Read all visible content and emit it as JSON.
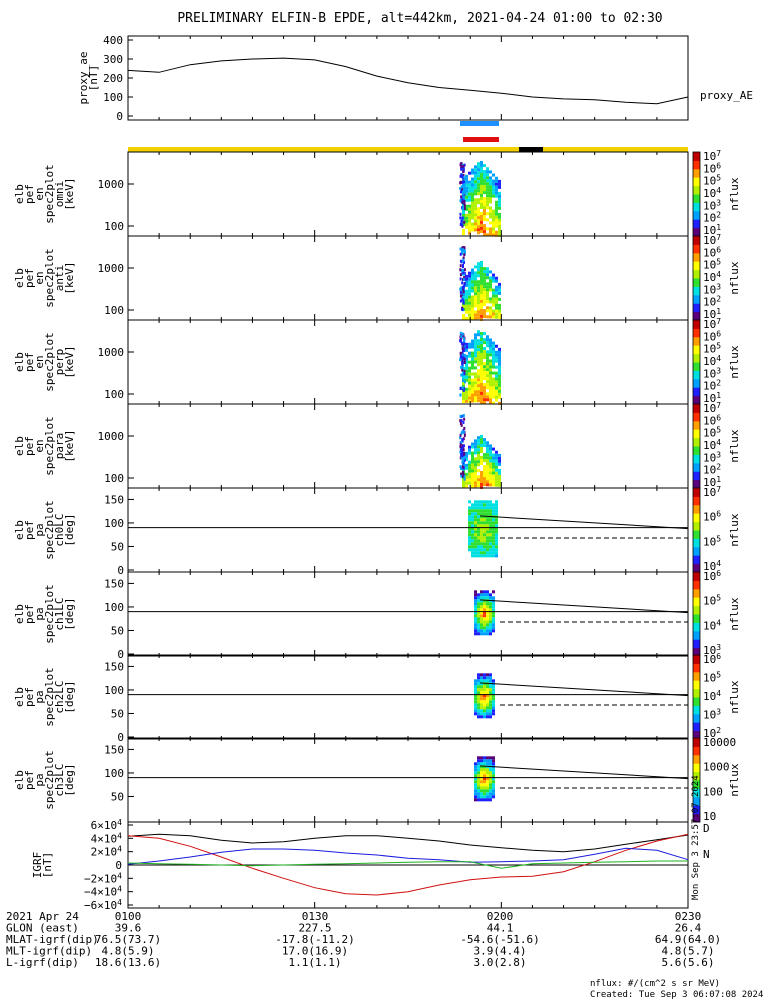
{
  "header": {
    "title": "PRELIMINARY ELFIN-B EPDE, alt=442km, 2021-04-24 01:00 to 02:30"
  },
  "side_stamp": "Mon Sep  3 23:57:07 2024",
  "colors": {
    "ae_line": "#000000",
    "bar_blue": "#1e90ff",
    "bar_red": "#e01010",
    "bar_yellow": "#f5d000",
    "bar_black": "#000000",
    "igrf_x": "#000000",
    "igrf_y": "#d01010",
    "igrf_z": "#1a1adc",
    "igrf_w": "#20b020"
  },
  "colormap": [
    "#5a007a",
    "#2020ff",
    "#00a0ff",
    "#00e0e0",
    "#30e030",
    "#b0f000",
    "#ffff00",
    "#ffa000",
    "#ff3000",
    "#c00000"
  ],
  "panels": [
    {
      "id": "ae",
      "label_lines": [
        "proxy_ae",
        "[nT]"
      ],
      "right_label": "proxy_AE",
      "yticks": [
        "400",
        "300",
        "200",
        "100",
        "0"
      ]
    },
    {
      "id": "omni",
      "label_lines": [
        "elb",
        "pef",
        "en",
        "spec2plot",
        "omni",
        "[keV]"
      ],
      "yticks": [
        "1000",
        "100"
      ],
      "cb_ticks": [
        "10^7",
        "10^6",
        "10^5",
        "10^4",
        "10^3",
        "10^2",
        "10^1"
      ],
      "cb_label": "nflux"
    },
    {
      "id": "anti",
      "label_lines": [
        "elb",
        "pef",
        "en",
        "spec2plot",
        "anti",
        "[keV]"
      ],
      "yticks": [
        "1000",
        "100"
      ],
      "cb_ticks": [
        "10^7",
        "10^6",
        "10^5",
        "10^4",
        "10^3",
        "10^2",
        "10^1"
      ],
      "cb_label": "nflux"
    },
    {
      "id": "perp",
      "label_lines": [
        "elb",
        "pef",
        "en",
        "spec2plot",
        "perp",
        "[keV]"
      ],
      "yticks": [
        "1000",
        "100"
      ],
      "cb_ticks": [
        "10^7",
        "10^6",
        "10^5",
        "10^4",
        "10^3",
        "10^2",
        "10^1"
      ],
      "cb_label": "nflux"
    },
    {
      "id": "para",
      "label_lines": [
        "elb",
        "pef",
        "en",
        "spec2plot",
        "para",
        "[keV]"
      ],
      "yticks": [
        "1000",
        "100"
      ],
      "cb_ticks": [
        "10^7",
        "10^6",
        "10^5",
        "10^4",
        "10^3",
        "10^2",
        "10^1"
      ],
      "cb_label": "nflux"
    },
    {
      "id": "ch0",
      "label_lines": [
        "elb",
        "pef",
        "pa",
        "spec2plot",
        "ch0LC",
        "[deg]"
      ],
      "yticks": [
        "150",
        "100",
        "50",
        "0"
      ],
      "cb_ticks": [
        "10^7",
        "10^6",
        "10^5",
        "10^4"
      ],
      "cb_label": "nflux"
    },
    {
      "id": "ch1",
      "label_lines": [
        "elb",
        "pef",
        "pa",
        "spec2plot",
        "ch1LC",
        "[deg]"
      ],
      "yticks": [
        "150",
        "100",
        "50",
        "0"
      ],
      "cb_ticks": [
        "10^6",
        "10^5",
        "10^4",
        "10^3"
      ],
      "cb_label": "nflux"
    },
    {
      "id": "ch2",
      "label_lines": [
        "elb",
        "pef",
        "pa",
        "spec2plot",
        "ch2LC",
        "[deg]"
      ],
      "yticks": [
        "150",
        "100",
        "50",
        "0"
      ],
      "cb_ticks": [
        "10^6",
        "10^5",
        "10^4",
        "10^3",
        "10^2"
      ],
      "cb_label": "nflux"
    },
    {
      "id": "ch3",
      "label_lines": [
        "elb",
        "pef",
        "pa",
        "spec2plot",
        "ch3LC",
        "[deg]"
      ],
      "yticks": [
        "150",
        "100",
        "50"
      ],
      "cb_ticks": [
        "10000",
        "1000",
        "100",
        "10"
      ],
      "cb_label": "nflux"
    },
    {
      "id": "igrf",
      "label_lines": [
        "IGRF",
        "[nT]"
      ],
      "yticks": [
        "6×10^4",
        "4×10^4",
        "2×10^4",
        "0",
        "−2×10^4",
        "−4×10^4",
        "−6×10^4"
      ],
      "legend": [
        "D",
        "N"
      ]
    }
  ],
  "chart_data": [
    {
      "type": "line",
      "panel": "proxy_ae",
      "ylabel": "proxy_ae [nT]",
      "ylim": [
        0,
        420
      ],
      "x": [
        "01:00",
        "01:05",
        "01:10",
        "01:15",
        "01:20",
        "01:25",
        "01:30",
        "01:35",
        "01:40",
        "01:45",
        "01:50",
        "01:55",
        "02:00",
        "02:05",
        "02:10",
        "02:15",
        "02:20",
        "02:25",
        "02:30"
      ],
      "series": [
        {
          "name": "proxy_AE",
          "values": [
            240,
            230,
            270,
            290,
            300,
            305,
            295,
            260,
            210,
            175,
            150,
            135,
            120,
            100,
            90,
            85,
            72,
            65,
            100
          ]
        }
      ]
    },
    {
      "type": "line",
      "panel": "IGRF",
      "ylabel": "IGRF [nT]",
      "ylim": [
        -60000,
        60000
      ],
      "x": [
        "01:00",
        "01:05",
        "01:10",
        "01:15",
        "01:20",
        "01:25",
        "01:30",
        "01:35",
        "01:40",
        "01:45",
        "01:50",
        "01:55",
        "02:00",
        "02:05",
        "02:10",
        "02:15",
        "02:20",
        "02:25",
        "02:30"
      ],
      "series": [
        {
          "values": [
            43000,
            46000,
            44000,
            37000,
            33000,
            35000,
            40000,
            44000,
            44000,
            40000,
            36000,
            30000,
            26000,
            22000,
            20000,
            24000,
            31000,
            38000,
            45000
          ]
        },
        {
          "values": [
            44000,
            40000,
            28000,
            12000,
            -5000,
            -20000,
            -34000,
            -43000,
            -45000,
            -40000,
            -30000,
            -22000,
            -18000,
            -17000,
            -10000,
            5000,
            22000,
            36000,
            46000
          ]
        },
        {
          "values": [
            1000,
            6000,
            12000,
            19000,
            24000,
            24000,
            22000,
            18000,
            15000,
            10000,
            8000,
            4000,
            5000,
            6000,
            8000,
            16000,
            25000,
            22000,
            8000
          ]
        },
        {
          "values": [
            3000,
            2000,
            1000,
            0,
            -1000,
            0,
            1000,
            2000,
            3000,
            4000,
            5000,
            5000,
            -5000,
            2000,
            3000,
            4000,
            5000,
            6000,
            6000
          ]
        }
      ]
    },
    {
      "type": "table",
      "panel": "orbit-info",
      "rows": [
        {
          "label": "2021 Apr 24",
          "values": [
            "0100",
            "0130",
            "0200",
            "0230"
          ]
        },
        {
          "label": "GLON (east)",
          "values": [
            "39.6",
            "227.5",
            "44.1",
            "26.4"
          ]
        },
        {
          "label": "MLAT-igrf(dip)",
          "values": [
            "76.5(73.7)",
            "-17.8(-11.2)",
            "-54.6(-51.6)",
            "64.9(64.0)"
          ]
        },
        {
          "label": "MLT-igrf(dip)",
          "values": [
            "4.8(5.9)",
            "17.0(16.9)",
            "3.9(4.4)",
            "4.8(5.7)"
          ]
        },
        {
          "label": "L-igrf(dip)",
          "values": [
            "18.6(13.6)",
            "1.1(1.1)",
            "3.0(2.8)",
            "5.6(5.6)"
          ]
        }
      ]
    }
  ],
  "footer": {
    "line1": "nflux: #/(cm^2 s sr MeV)",
    "line2": "Created: Tue Sep  3 06:07:08 2024"
  }
}
